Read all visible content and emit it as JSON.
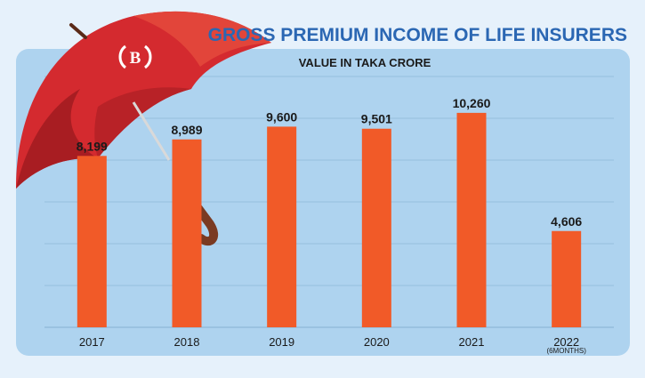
{
  "colors": {
    "title": "#2b67b3",
    "panel": "#aed3ef",
    "page_bg": "#e6f1fb",
    "bar": "#f15a28",
    "grid": "#8fb8d8",
    "umbrella": "#d42a2f",
    "umbrella_dark": "#a81d22",
    "handle": "#7a3a22",
    "text": "#1a1a1a"
  },
  "logo": {
    "text": "B"
  },
  "chart_data": {
    "type": "bar",
    "title": "GROSS PREMIUM INCOME OF LIFE INSURERS",
    "subtitle": "VALUE IN TAKA CRORE",
    "categories": [
      "2017",
      "2018",
      "2019",
      "2020",
      "2021",
      "2022"
    ],
    "category_notes": [
      "",
      "",
      "",
      "",
      "",
      "(6MONTHS)"
    ],
    "values": [
      8199,
      8989,
      9600,
      9501,
      10260,
      4606
    ],
    "value_labels": [
      "8,199",
      "8,989",
      "9,600",
      "9,501",
      "10,260",
      "4,606"
    ],
    "ylim": [
      0,
      12000
    ],
    "grid": true,
    "xlabel": "",
    "ylabel": ""
  }
}
